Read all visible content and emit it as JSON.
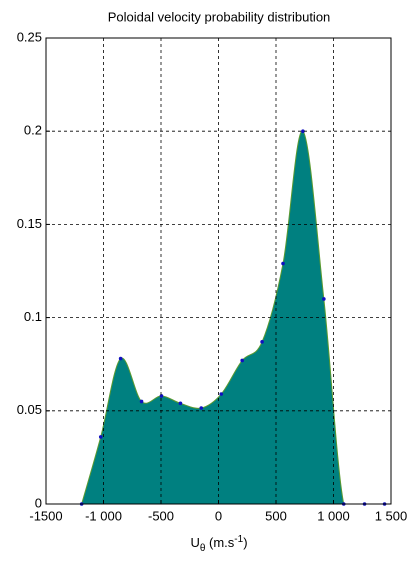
{
  "chart_data": {
    "type": "area",
    "title": "Poloidal velocity probability distribution",
    "xlabel": {
      "main": "U",
      "sub": "θ",
      "unit": " (m.s",
      "sup": "-1",
      "end": ")"
    },
    "x": [
      -1190,
      -1024,
      -851,
      -669,
      -496,
      -331,
      -150,
      24,
      206,
      379,
      561,
      734,
      916,
      1089,
      1270,
      1444
    ],
    "values": [
      0,
      0.036,
      0.078,
      0.055,
      0.058,
      0.054,
      0.0515,
      0.059,
      0.077,
      0.087,
      0.129,
      0.2,
      0.11,
      0,
      0,
      0
    ],
    "color": "#008080",
    "marker_color": "#1010c0",
    "xlim": [
      -1500,
      1500
    ],
    "xticks": [
      -1500,
      {
        "value": -1000,
        "label": "-1 000"
      },
      -500,
      0,
      500,
      {
        "value": 1000,
        "label": "1 000"
      },
      {
        "value": 1500,
        "label": "1 500"
      }
    ],
    "ylim": [
      0,
      0.25
    ],
    "yticks": [
      0,
      0.05,
      0.1,
      0.15,
      0.2,
      0.25
    ],
    "grid": true
  }
}
